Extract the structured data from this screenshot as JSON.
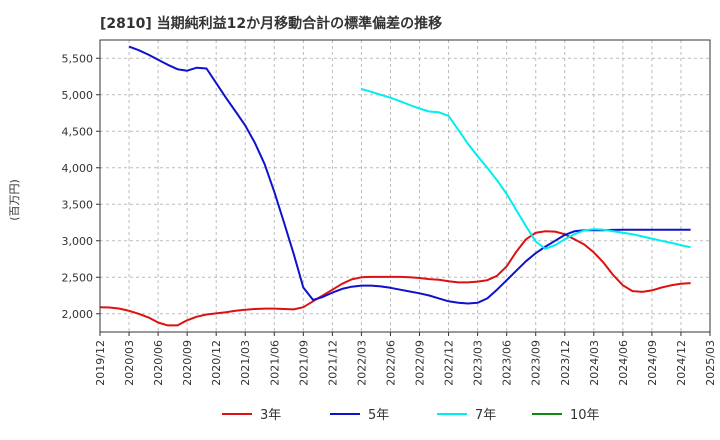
{
  "chart_data": {
    "type": "line",
    "title": "[2810]  当期純利益12か月移動合計の標準偏差の推移",
    "ylabel": "(百万円)",
    "xlabel": "",
    "ylim": [
      1750,
      5750
    ],
    "yticks": [
      2000,
      2500,
      3000,
      3500,
      4000,
      4500,
      5000,
      5500
    ],
    "ytick_labels": [
      "2,000",
      "2,500",
      "3,000",
      "3,500",
      "4,000",
      "4,500",
      "5,000",
      "5,500"
    ],
    "xticks": [
      "2019/12",
      "2020/03",
      "2020/06",
      "2020/09",
      "2020/12",
      "2021/03",
      "2021/06",
      "2021/09",
      "2021/12",
      "2022/03",
      "2022/06",
      "2022/09",
      "2022/12",
      "2023/03",
      "2023/06",
      "2023/09",
      "2023/12",
      "2024/03",
      "2024/06",
      "2024/09",
      "2024/12",
      "2025/03"
    ],
    "x_start": "2019/12",
    "grid": true,
    "legend_position": "bottom",
    "series": [
      {
        "name": "3年",
        "color": "#dd1111",
        "start_index": 0,
        "values": [
          2090,
          2085,
          2070,
          2040,
          2000,
          1950,
          1880,
          1840,
          1840,
          1910,
          1960,
          1990,
          2005,
          2020,
          2040,
          2055,
          2065,
          2070,
          2070,
          2065,
          2060,
          2090,
          2170,
          2250,
          2330,
          2410,
          2470,
          2500,
          2505,
          2505,
          2505,
          2505,
          2500,
          2490,
          2475,
          2465,
          2445,
          2430,
          2430,
          2440,
          2460,
          2520,
          2650,
          2850,
          3020,
          3110,
          3130,
          3125,
          3090,
          3020,
          2950,
          2840,
          2700,
          2530,
          2390,
          2310,
          2300,
          2320,
          2360,
          2390,
          2410,
          2420
        ]
      },
      {
        "name": "5年",
        "color": "#1111cc",
        "start_index": 3,
        "values": [
          5660,
          5610,
          5550,
          5480,
          5410,
          5350,
          5330,
          5370,
          5360,
          5160,
          4960,
          4770,
          4580,
          4340,
          4050,
          3670,
          3250,
          2820,
          2360,
          2190,
          2230,
          2290,
          2340,
          2370,
          2385,
          2385,
          2375,
          2355,
          2330,
          2305,
          2280,
          2250,
          2210,
          2170,
          2150,
          2140,
          2150,
          2210,
          2330,
          2460,
          2590,
          2720,
          2830,
          2920,
          3000,
          3080,
          3130,
          3145,
          3145,
          3145,
          3148,
          3150,
          3150,
          3150,
          3150,
          3150,
          3150,
          3150,
          3150
        ]
      },
      {
        "name": "7年",
        "color": "#00eeee",
        "start_index": 27,
        "values": [
          5080,
          5040,
          5000,
          4960,
          4910,
          4860,
          4810,
          4770,
          4760,
          4710,
          4520,
          4330,
          4160,
          4000,
          3830,
          3640,
          3420,
          3200,
          2990,
          2890,
          2940,
          3020,
          3090,
          3140,
          3160,
          3150,
          3130,
          3110,
          3090,
          3060,
          3030,
          3000,
          2970,
          2940,
          2910
        ]
      },
      {
        "name": "10年",
        "color": "#118811",
        "start_index": 0,
        "values": []
      }
    ]
  }
}
